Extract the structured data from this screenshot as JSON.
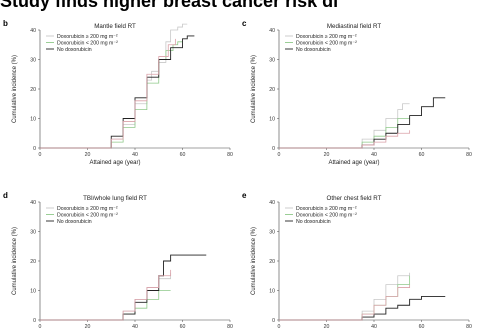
{
  "headline": "Study finds higher breast cancer risk di",
  "chart_data": [
    {
      "type": "line",
      "panel_label": "b",
      "title": "Mantle field RT",
      "xlabel": "Attained age (year)",
      "ylabel": "Cumulative incidence (%)",
      "xlim": [
        0,
        80
      ],
      "ylim": [
        0,
        40
      ],
      "xticks": [
        "0",
        "20",
        "40",
        "60",
        "80"
      ],
      "yticks": [
        "0",
        "10",
        "20",
        "30",
        "40"
      ],
      "legend_position": "top-left",
      "series": [
        {
          "name": "Doxorubicin ≥ 200 mg m⁻²",
          "color": "#c8c8c8",
          "x": [
            0,
            25,
            30,
            35,
            40,
            45,
            47,
            50,
            53,
            55,
            58,
            60,
            62
          ],
          "y": [
            0,
            0,
            3,
            8,
            15,
            23,
            26,
            29,
            36,
            40,
            41,
            42,
            42
          ]
        },
        {
          "name": "Doxorubicin < 200 mg m⁻²",
          "color": "#8fc98a",
          "x": [
            0,
            25,
            30,
            35,
            40,
            45,
            50,
            53,
            56,
            58,
            60
          ],
          "y": [
            0,
            0,
            2,
            7,
            13,
            22,
            30,
            33,
            35,
            36,
            36
          ]
        },
        {
          "name": "No doxorubicin",
          "color": "#222222",
          "x": [
            0,
            24,
            30,
            35,
            40,
            45,
            50,
            55,
            60,
            62,
            65
          ],
          "y": [
            0,
            0,
            4,
            10,
            17,
            24,
            30,
            34,
            37,
            38,
            38
          ]
        },
        {
          "name": "",
          "color": "#d9a0a8",
          "x": [
            0,
            25,
            30,
            35,
            40,
            45,
            50,
            54,
            57
          ],
          "y": [
            0,
            0,
            3,
            9,
            16,
            25,
            31,
            35,
            37
          ]
        }
      ]
    },
    {
      "type": "line",
      "panel_label": "c",
      "title": "Mediastinal field RT",
      "xlabel": "Attained age (year)",
      "ylabel": "Cumulative incidence (%)",
      "xlim": [
        0,
        80
      ],
      "ylim": [
        0,
        40
      ],
      "xticks": [
        "0",
        "20",
        "40",
        "60",
        "80"
      ],
      "yticks": [
        "0",
        "10",
        "20",
        "30",
        "40"
      ],
      "legend_position": "top-left",
      "series": [
        {
          "name": "Doxorubicin ≥ 200 mg m⁻²",
          "color": "#c8c8c8",
          "x": [
            0,
            30,
            35,
            40,
            45,
            50,
            52,
            55
          ],
          "y": [
            0,
            0,
            3,
            6,
            10,
            13,
            15,
            15
          ]
        },
        {
          "name": "Doxorubicin < 200 mg m⁻²",
          "color": "#8fc98a",
          "x": [
            0,
            30,
            35,
            40,
            45,
            50,
            55
          ],
          "y": [
            0,
            0,
            2,
            4,
            7,
            10,
            10
          ]
        },
        {
          "name": "No doxorubicin",
          "color": "#222222",
          "x": [
            0,
            30,
            35,
            40,
            45,
            50,
            55,
            60,
            65,
            70
          ],
          "y": [
            0,
            0,
            1,
            3,
            5,
            8,
            11,
            14,
            17,
            17
          ]
        },
        {
          "name": "",
          "color": "#d9a0a8",
          "x": [
            0,
            30,
            35,
            40,
            45,
            50,
            55
          ],
          "y": [
            0,
            0,
            1,
            2,
            4,
            5,
            6
          ]
        }
      ]
    },
    {
      "type": "line",
      "panel_label": "d",
      "title": "TBI/whole lung field RT",
      "xlabel": "Attained age (year)",
      "ylabel": "Cumulative incidence (%)",
      "xlim": [
        0,
        80
      ],
      "ylim": [
        0,
        40
      ],
      "xticks": [
        "0",
        "20",
        "40",
        "60",
        "80"
      ],
      "yticks": [
        "0",
        "10",
        "20",
        "30",
        "40"
      ],
      "legend_position": "top-left",
      "series": [
        {
          "name": "Doxorubicin ≥ 200 mg m⁻²",
          "color": "#c8c8c8",
          "x": [
            0,
            30,
            35,
            40,
            45,
            50,
            55
          ],
          "y": [
            0,
            0,
            3,
            7,
            11,
            14,
            16
          ]
        },
        {
          "name": "Doxorubicin < 200 mg m⁻²",
          "color": "#8fc98a",
          "x": [
            0,
            30,
            35,
            40,
            45,
            50,
            55
          ],
          "y": [
            0,
            0,
            2,
            4,
            7,
            10,
            10
          ]
        },
        {
          "name": "No doxorubicin",
          "color": "#222222",
          "x": [
            0,
            30,
            35,
            40,
            45,
            50,
            52,
            55,
            60,
            65,
            70
          ],
          "y": [
            0,
            0,
            2,
            6,
            10,
            15,
            20,
            22,
            22,
            22,
            22
          ]
        },
        {
          "name": "",
          "color": "#d9a0a8",
          "x": [
            0,
            30,
            35,
            40,
            45,
            50,
            55
          ],
          "y": [
            0,
            0,
            3,
            7,
            11,
            15,
            17
          ]
        }
      ]
    },
    {
      "type": "line",
      "panel_label": "e",
      "title": "Other chest field RT",
      "xlabel": "Attained age (year)",
      "ylabel": "Cumulative incidence (%)",
      "xlim": [
        0,
        80
      ],
      "ylim": [
        0,
        40
      ],
      "xticks": [
        "0",
        "20",
        "40",
        "60",
        "80"
      ],
      "yticks": [
        "0",
        "10",
        "20",
        "30",
        "40"
      ],
      "legend_position": "top-left",
      "series": [
        {
          "name": "Doxorubicin ≥ 200 mg m⁻²",
          "color": "#c8c8c8",
          "x": [
            0,
            30,
            35,
            40,
            45,
            50,
            55
          ],
          "y": [
            0,
            0,
            3,
            7,
            12,
            15,
            16
          ]
        },
        {
          "name": "Doxorubicin < 200 mg m⁻²",
          "color": "#8fc98a",
          "x": [
            0,
            30,
            35,
            40,
            45,
            50,
            55
          ],
          "y": [
            0,
            0,
            2,
            5,
            8,
            12,
            15
          ]
        },
        {
          "name": "No doxorubicin",
          "color": "#222222",
          "x": [
            0,
            30,
            35,
            40,
            45,
            50,
            55,
            60,
            65,
            70
          ],
          "y": [
            0,
            0,
            1,
            2,
            4,
            5,
            7,
            8,
            8,
            8
          ]
        },
        {
          "name": "",
          "color": "#d9a0a8",
          "x": [
            0,
            30,
            35,
            40,
            45,
            50,
            55
          ],
          "y": [
            0,
            0,
            2,
            5,
            8,
            11,
            12
          ]
        }
      ]
    }
  ]
}
